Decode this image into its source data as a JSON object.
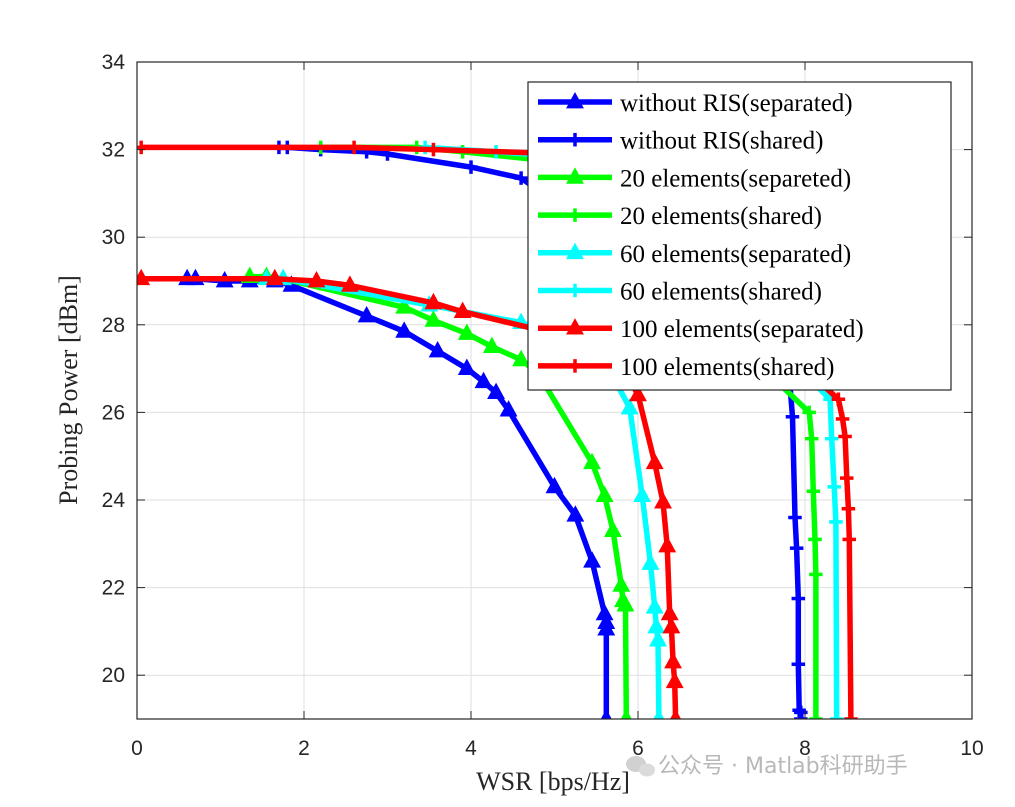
{
  "chart_data": {
    "type": "line",
    "title": "",
    "xlabel": "WSR [bps/Hz]",
    "ylabel": "Probing Power [dBm]",
    "xlim": [
      0,
      10
    ],
    "ylim": [
      19,
      34
    ],
    "xticks": [
      "0",
      "2",
      "4",
      "6",
      "8",
      "10"
    ],
    "yticks": [
      "20",
      "22",
      "24",
      "26",
      "28",
      "30",
      "32",
      "34"
    ],
    "grid": true,
    "legend_position": "top-right",
    "series": [
      {
        "name": "without RIS(separated)",
        "color": "#0000ff",
        "marker": "triangle",
        "x": [
          0.6,
          0.7,
          1.05,
          1.35,
          1.65,
          1.85,
          2.75,
          3.2,
          3.6,
          3.95,
          4.15,
          4.3,
          4.45,
          5.0,
          5.25,
          5.45,
          5.6,
          5.62,
          5.62,
          5.62
        ],
        "y": [
          29.05,
          29.05,
          29.0,
          29.0,
          29.0,
          28.9,
          28.2,
          27.85,
          27.4,
          27.0,
          26.7,
          26.45,
          26.05,
          24.3,
          23.65,
          22.6,
          21.4,
          21.2,
          21.05,
          19.0
        ]
      },
      {
        "name": "without RIS(shared)",
        "color": "#0000ff",
        "marker": "plus",
        "x": [
          1.7,
          1.8,
          2.2,
          2.75,
          3.0,
          4.0,
          4.6,
          7.8,
          7.85,
          7.88,
          7.9,
          7.92,
          7.92,
          7.93,
          7.95,
          7.95
        ],
        "y": [
          32.05,
          32.05,
          32.0,
          31.95,
          31.9,
          31.6,
          31.35,
          27.1,
          25.9,
          23.6,
          22.9,
          21.75,
          20.25,
          19.2,
          19.15,
          19.0
        ]
      },
      {
        "name": "20 elements(separeted)",
        "color": "#00ff00",
        "marker": "triangle",
        "x": [
          1.35,
          1.55,
          1.75,
          3.2,
          3.55,
          3.95,
          4.25,
          4.6,
          4.8,
          5.45,
          5.6,
          5.7,
          5.8,
          5.82,
          5.85,
          5.86
        ],
        "y": [
          29.1,
          29.1,
          29.05,
          28.4,
          28.1,
          27.8,
          27.5,
          27.2,
          26.9,
          24.85,
          24.1,
          23.3,
          22.05,
          21.7,
          21.6,
          19.0
        ]
      },
      {
        "name": "20 elements(shared)",
        "color": "#00ff00",
        "marker": "plus",
        "x": [
          2.2,
          3.35,
          3.9,
          4.9,
          8.05,
          8.08,
          8.1,
          8.12,
          8.13,
          8.13
        ],
        "y": [
          32.05,
          32.05,
          31.95,
          31.75,
          26.0,
          25.4,
          24.2,
          23.1,
          22.3,
          19.0
        ]
      },
      {
        "name": "60 elements(separated)",
        "color": "#00ffff",
        "marker": "triangle",
        "x": [
          1.55,
          1.75,
          3.5,
          4.6,
          5.0,
          5.65,
          5.9,
          6.05,
          6.15,
          6.2,
          6.22,
          6.24,
          6.25
        ],
        "y": [
          29.05,
          29.05,
          28.45,
          28.05,
          27.8,
          27.0,
          26.1,
          24.1,
          22.55,
          21.55,
          21.1,
          20.8,
          19.0
        ]
      },
      {
        "name": "60 elements(shared)",
        "color": "#00ffff",
        "marker": "plus",
        "x": [
          3.45,
          4.3,
          5.4,
          8.3,
          8.32,
          8.35,
          8.37,
          8.38
        ],
        "y": [
          32.05,
          31.95,
          31.8,
          26.3,
          25.4,
          24.3,
          23.5,
          19.0
        ]
      },
      {
        "name": "100 elements(separated)",
        "color": "#ff0000",
        "marker": "triangle",
        "x": [
          0.05,
          1.65,
          2.15,
          2.55,
          3.55,
          3.9,
          5.0,
          5.8,
          6.0,
          6.2,
          6.3,
          6.35,
          6.38,
          6.4,
          6.42,
          6.44,
          6.45
        ],
        "y": [
          29.05,
          29.05,
          29.0,
          28.9,
          28.5,
          28.3,
          27.8,
          27.1,
          26.4,
          24.85,
          23.95,
          22.95,
          21.4,
          21.1,
          20.3,
          19.85,
          19.0
        ]
      },
      {
        "name": "100 elements(shared)",
        "color": "#ff0000",
        "marker": "plus",
        "x": [
          0.05,
          2.6,
          3.55,
          5.2,
          8.4,
          8.45,
          8.48,
          8.5,
          8.52,
          8.53,
          8.55
        ],
        "y": [
          32.05,
          32.05,
          32.0,
          31.9,
          26.3,
          25.85,
          25.45,
          24.5,
          23.8,
          23.1,
          19.0
        ]
      }
    ]
  },
  "watermark": {
    "text": "公众号 · Matlab科研助手",
    "icon": "wechat-icon"
  }
}
